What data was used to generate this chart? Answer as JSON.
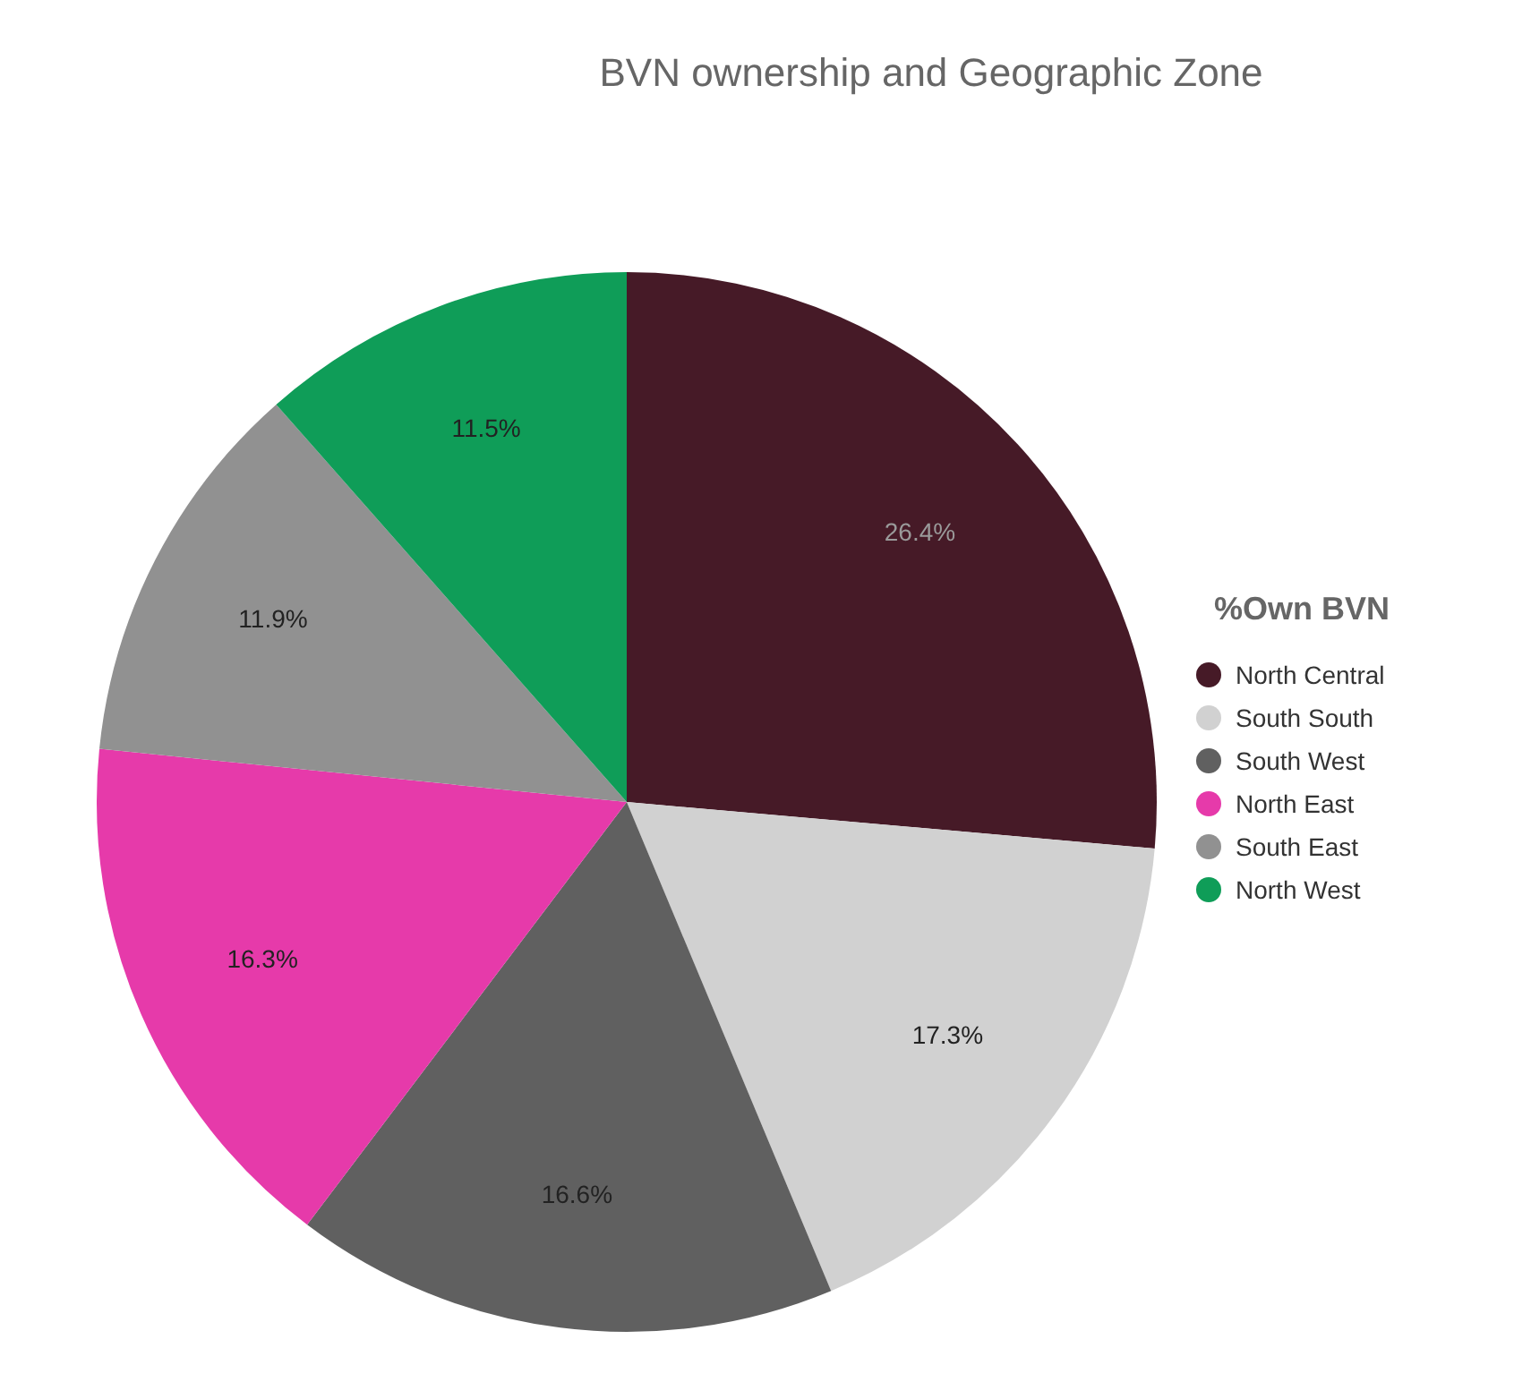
{
  "chart_data": {
    "type": "pie",
    "title": "BVN ownership and Geographic Zone",
    "legend_title": "%Own BVN",
    "legend": "right",
    "value_labels": [
      "26.4%",
      "17.3%",
      "16.6%",
      "16.3%",
      "11.9%",
      "11.5%"
    ],
    "categories": [
      "North Central",
      "South South",
      "South West",
      "North East",
      "South East",
      "North West"
    ],
    "values": [
      26.4,
      17.3,
      16.6,
      16.3,
      11.9,
      11.5
    ],
    "colors": [
      "#461a27",
      "#d1d1d1",
      "#606060",
      "#e63aaa",
      "#919191",
      "#0f9d58"
    ]
  }
}
